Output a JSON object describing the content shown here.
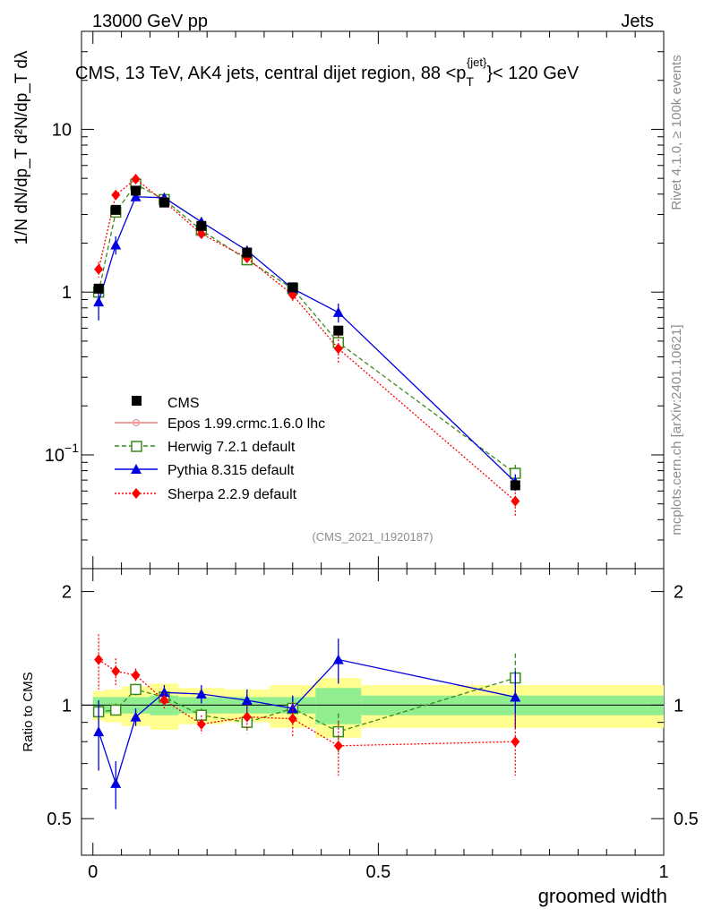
{
  "header": {
    "energy": "13000 GeV pp",
    "category": "Jets",
    "title_main": "CMS, 13 TeV, AK4 jets, central dijet region, 88 <p",
    "title_sub": "T",
    "title_sup": "{jet}",
    "title_end": "}< 120 GeV",
    "analysis_id": "(CMS_2021_I1920187)"
  },
  "side_labels": {
    "rivet": "Rivet 4.1.0, ≥ 100k events",
    "mcplots": "mcplots.cern.ch [arXiv:2401.10621]"
  },
  "axes": {
    "xlabel": "groomed width",
    "ylabel_main": "1/N dN/dp_T d²N/dp_T dλ",
    "ylabel_ratio": "Ratio to CMS",
    "xlim": [
      -0.02,
      1.0
    ],
    "ylim_main": [
      0.02,
      40
    ],
    "ylim_ratio": [
      0.4,
      2.3
    ],
    "x_ticks": [
      "0",
      "0.5",
      "1"
    ],
    "y_ticks_main": [
      "10",
      "1",
      "10"
    ],
    "y_ticks_main_exp": [
      "",
      "",
      "−1"
    ],
    "y_ticks_ratio": [
      "2",
      "1",
      "0.5"
    ]
  },
  "legend": {
    "cms": "CMS",
    "epos": "Epos 1.99.crmc.1.6.0 lhc",
    "herwig": "Herwig 7.2.1 default",
    "pythia": "Pythia 8.315 default",
    "sherpa": "Sherpa 2.2.9 default"
  },
  "colors": {
    "cms": "#000000",
    "epos": "#f08080",
    "herwig": "#3a8a1a",
    "pythia": "#0000e0",
    "sherpa": "#ff0000",
    "band_inner": "#90ee90",
    "band_outer": "#ffff90"
  },
  "chart_data": {
    "type": "scatter",
    "x": [
      0.01,
      0.04,
      0.075,
      0.125,
      0.19,
      0.27,
      0.35,
      0.43,
      0.74
    ],
    "bin_edges": [
      0.0,
      0.02,
      0.05,
      0.1,
      0.15,
      0.23,
      0.31,
      0.39,
      0.47,
      1.0
    ],
    "series": [
      {
        "name": "CMS",
        "key": "cms",
        "values": [
          1.05,
          3.2,
          4.2,
          3.55,
          2.55,
          1.75,
          1.07,
          0.58,
          0.065
        ],
        "band_inner": [
          0.05,
          0.05,
          0.05,
          0.06,
          0.05,
          0.05,
          0.05,
          0.11,
          0.06
        ],
        "band_outer": [
          0.09,
          0.1,
          0.12,
          0.14,
          0.11,
          0.1,
          0.13,
          0.18,
          0.13
        ]
      },
      {
        "name": "Herwig 7.2.1 default",
        "key": "herwig",
        "values": [
          1.0,
          3.1,
          4.6,
          3.7,
          2.4,
          1.58,
          1.05,
          0.49,
          0.077
        ],
        "errors": [
          0.05,
          0.12,
          0.15,
          0.12,
          0.1,
          0.08,
          0.06,
          0.05,
          0.01
        ]
      },
      {
        "name": "Pythia 8.315 default",
        "key": "pythia",
        "values": [
          0.87,
          1.95,
          3.85,
          3.8,
          2.7,
          1.8,
          1.05,
          0.75,
          0.068
        ],
        "errors": [
          0.2,
          0.25,
          0.2,
          0.15,
          0.15,
          0.12,
          0.08,
          0.1,
          0.008
        ]
      },
      {
        "name": "Sherpa 2.2.9 default",
        "key": "sherpa",
        "values": [
          1.38,
          3.95,
          4.95,
          3.6,
          2.28,
          1.62,
          0.96,
          0.45,
          0.052
        ],
        "errors": [
          0.15,
          0.25,
          0.2,
          0.15,
          0.12,
          0.1,
          0.08,
          0.09,
          0.01
        ]
      }
    ],
    "ratio_series": [
      {
        "key": "herwig",
        "values": [
          0.96,
          0.97,
          1.1,
          1.05,
          0.94,
          0.9,
          0.98,
          0.85,
          1.18
        ],
        "errors": [
          0.04,
          0.04,
          0.04,
          0.04,
          0.04,
          0.06,
          0.07,
          0.1,
          0.19
        ]
      },
      {
        "key": "pythia",
        "values": [
          0.85,
          0.62,
          0.93,
          1.08,
          1.07,
          1.03,
          0.98,
          1.32,
          1.05
        ],
        "errors": [
          0.18,
          0.09,
          0.05,
          0.05,
          0.06,
          0.07,
          0.08,
          0.18,
          0.18
        ]
      },
      {
        "key": "sherpa",
        "values": [
          1.32,
          1.23,
          1.2,
          1.03,
          0.89,
          0.93,
          0.92,
          0.78,
          0.8
        ],
        "errors": [
          0.22,
          0.1,
          0.05,
          0.05,
          0.05,
          0.07,
          0.1,
          0.13,
          0.15
        ]
      }
    ]
  }
}
